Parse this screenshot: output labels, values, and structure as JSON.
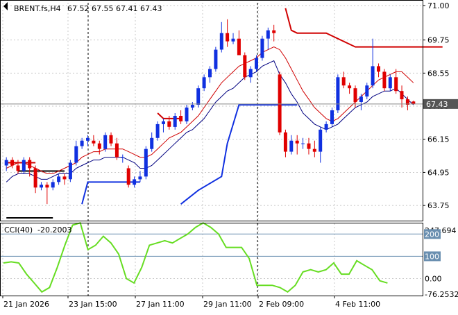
{
  "header": {
    "symbol": "BRENT.fs,H4",
    "ohlc": "67.52 67.55 67.41 67.43"
  },
  "chart_data": [
    {
      "type": "candlestick",
      "title": "BRENT.fs,H4",
      "ylim": [
        63.2,
        71.1
      ],
      "y_ticks": [
        "71.00",
        "69.75",
        "68.55",
        "67.35",
        "66.15",
        "64.95",
        "63.75"
      ],
      "y_tick_values": [
        71.0,
        69.75,
        68.55,
        67.35,
        66.15,
        64.95,
        63.75
      ],
      "last_price": "67.43",
      "last_price_value": 67.43,
      "x_labels": [
        "21 Jan 2026",
        "23 Jan 15:00",
        "27 Jan 11:00",
        "29 Jan 11:00",
        "2 Feb 09:00",
        "4 Feb 11:00"
      ],
      "candles": [
        [
          65.2,
          65.5,
          65.0,
          65.4
        ],
        [
          65.4,
          65.5,
          65.1,
          65.2
        ],
        [
          65.2,
          65.4,
          64.9,
          65.0
        ],
        [
          65.0,
          65.5,
          64.9,
          65.4
        ],
        [
          65.4,
          65.5,
          64.8,
          65.1
        ],
        [
          65.1,
          65.2,
          64.2,
          64.4
        ],
        [
          64.4,
          64.6,
          64.3,
          64.5
        ],
        [
          64.5,
          64.6,
          63.8,
          64.4
        ],
        [
          64.4,
          64.7,
          64.3,
          64.6
        ],
        [
          64.6,
          64.9,
          64.5,
          64.8
        ],
        [
          64.8,
          64.9,
          64.5,
          64.7
        ],
        [
          64.7,
          65.4,
          64.6,
          65.3
        ],
        [
          65.3,
          66.1,
          65.2,
          65.9
        ],
        [
          65.9,
          66.2,
          65.8,
          66.1
        ],
        [
          66.1,
          66.3,
          65.9,
          66.2
        ],
        [
          66.1,
          66.3,
          65.9,
          66.0
        ],
        [
          66.0,
          66.1,
          65.6,
          65.8
        ],
        [
          65.8,
          66.4,
          65.7,
          66.3
        ],
        [
          66.3,
          66.4,
          65.9,
          66.0
        ],
        [
          66.0,
          66.2,
          65.4,
          65.5
        ],
        [
          65.5,
          65.6,
          65.3,
          65.5
        ],
        [
          65.1,
          65.2,
          64.4,
          64.5
        ],
        [
          64.5,
          64.8,
          64.4,
          64.7
        ],
        [
          64.7,
          65.0,
          64.6,
          64.8
        ],
        [
          64.8,
          65.9,
          64.7,
          65.8
        ],
        [
          65.8,
          66.4,
          65.7,
          66.2
        ],
        [
          66.2,
          66.8,
          66.1,
          66.7
        ],
        [
          66.7,
          66.9,
          66.4,
          66.8
        ],
        [
          66.8,
          67.0,
          66.5,
          66.6
        ],
        [
          66.6,
          67.1,
          66.5,
          67.0
        ],
        [
          67.0,
          67.2,
          66.7,
          66.8
        ],
        [
          66.8,
          67.4,
          66.7,
          67.3
        ],
        [
          67.3,
          67.5,
          67.2,
          67.4
        ],
        [
          67.4,
          68.1,
          67.3,
          68.0
        ],
        [
          68.0,
          68.5,
          67.9,
          68.4
        ],
        [
          68.4,
          68.8,
          68.2,
          68.7
        ],
        [
          68.7,
          69.5,
          68.6,
          69.4
        ],
        [
          69.4,
          70.4,
          69.3,
          70.0
        ],
        [
          70.0,
          70.5,
          69.5,
          69.7
        ],
        [
          69.7,
          70.0,
          69.6,
          69.8
        ],
        [
          69.8,
          70.1,
          69.2,
          69.2
        ],
        [
          69.2,
          69.3,
          68.3,
          68.4
        ],
        [
          68.4,
          68.8,
          68.2,
          68.7
        ],
        [
          68.7,
          69.2,
          68.6,
          69.1
        ],
        [
          69.1,
          69.9,
          69.0,
          69.8
        ],
        [
          69.8,
          70.2,
          69.4,
          70.1
        ],
        [
          70.1,
          70.3,
          69.7,
          70.0
        ],
        [
          68.5,
          68.6,
          66.3,
          66.4
        ],
        [
          66.4,
          66.5,
          65.5,
          65.7
        ],
        [
          65.7,
          66.3,
          65.6,
          66.1
        ],
        [
          66.1,
          66.3,
          65.6,
          66.0
        ],
        [
          66.0,
          66.2,
          65.8,
          66.0
        ],
        [
          66.0,
          66.2,
          65.6,
          65.8
        ],
        [
          65.8,
          66.1,
          65.5,
          65.7
        ],
        [
          65.7,
          66.6,
          65.3,
          66.5
        ],
        [
          66.5,
          66.8,
          66.4,
          66.7
        ],
        [
          66.7,
          67.3,
          66.6,
          67.2
        ],
        [
          67.2,
          68.5,
          67.1,
          68.4
        ],
        [
          68.4,
          68.6,
          68.0,
          68.1
        ],
        [
          68.1,
          68.2,
          67.8,
          68.0
        ],
        [
          68.0,
          68.1,
          67.3,
          67.5
        ],
        [
          67.5,
          67.8,
          67.2,
          67.7
        ],
        [
          67.7,
          68.2,
          67.6,
          68.1
        ],
        [
          68.1,
          69.8,
          68.0,
          68.8
        ],
        [
          68.8,
          68.9,
          68.4,
          68.6
        ],
        [
          68.6,
          68.7,
          67.9,
          68.0
        ],
        [
          68.0,
          68.5,
          67.9,
          68.4
        ],
        [
          68.4,
          68.7,
          67.8,
          67.9
        ],
        [
          67.9,
          68.1,
          67.3,
          67.6
        ],
        [
          67.6,
          67.7,
          67.2,
          67.4
        ],
        [
          67.52,
          67.55,
          67.41,
          67.43
        ]
      ],
      "ma_fast": [
        64.6,
        64.8,
        64.9,
        64.9,
        64.9,
        64.8,
        64.7,
        64.7,
        64.8,
        64.9,
        64.9,
        64.9,
        65.1,
        65.2,
        65.3,
        65.4,
        65.4,
        65.5,
        65.5,
        65.5,
        65.5,
        65.4,
        65.3,
        65.1,
        65.1,
        65.2,
        65.4,
        65.6,
        65.8,
        66.0,
        66.2,
        66.4,
        66.5,
        66.7,
        66.9,
        67.2,
        67.5,
        67.7,
        67.9,
        68.0,
        68.2,
        68.4,
        68.5,
        68.6,
        68.8,
        68.9,
        69.0,
        68.5,
        68.2,
        67.8,
        67.5,
        67.1,
        66.9,
        66.7,
        66.6,
        66.5,
        66.6,
        66.7,
        66.9,
        67.1,
        67.3,
        67.4,
        67.5,
        67.7,
        67.8,
        67.9,
        67.9,
        68.0,
        67.8,
        67.6,
        67.4
      ],
      "ma_slow": [
        65.1,
        65.2,
        65.3,
        65.3,
        65.2,
        65.1,
        65.0,
        64.9,
        64.9,
        65.0,
        65.1,
        65.2,
        65.3,
        65.5,
        65.6,
        65.7,
        65.7,
        65.8,
        65.8,
        65.8,
        65.8,
        65.7,
        65.6,
        65.5,
        65.5,
        65.6,
        65.8,
        66.0,
        66.2,
        66.3,
        66.4,
        66.6,
        66.8,
        67.0,
        67.3,
        67.6,
        67.9,
        68.2,
        68.4,
        68.6,
        68.8,
        68.9,
        69.0,
        69.1,
        69.3,
        69.4,
        69.5,
        69.4,
        69.1,
        68.7,
        68.3,
        67.9,
        67.6,
        67.3,
        67.1,
        66.9,
        66.8,
        66.9,
        67.1,
        67.3,
        67.5,
        67.7,
        67.9,
        68.1,
        68.3,
        68.4,
        68.5,
        68.6,
        68.6,
        68.4,
        68.2
      ],
      "resistance_steps": [
        [
          null,
          65.3
        ],
        [
          0,
          67.2
        ],
        [
          1,
          70.4
        ],
        [
          2,
          69.7
        ]
      ],
      "support_steps": [
        [
          null,
          65.0
        ],
        [
          1,
          63.9
        ],
        [
          1,
          64.6
        ],
        [
          1,
          67.4
        ]
      ]
    },
    {
      "type": "line",
      "title": "CCI(40)",
      "value_label": "-20.2003",
      "ylim": [
        -76.2532,
        247.694
      ],
      "y_ticks": [
        "247.694",
        "200",
        "100",
        "0.00",
        "-76.2532"
      ],
      "y_tick_values": [
        247.694,
        200,
        100,
        0,
        -76.2532
      ],
      "levels": [
        200,
        100
      ],
      "values": [
        70,
        75,
        70,
        20,
        -20,
        -60,
        -40,
        50,
        150,
        240,
        250,
        130,
        150,
        190,
        160,
        110,
        0,
        -20,
        50,
        150,
        160,
        170,
        160,
        180,
        200,
        230,
        250,
        230,
        200,
        140,
        140,
        140,
        90,
        -30,
        -30,
        -30,
        -40,
        -60,
        -30,
        30,
        40,
        30,
        40,
        70,
        20,
        20,
        80,
        60,
        40,
        -10,
        -20
      ]
    }
  ]
}
